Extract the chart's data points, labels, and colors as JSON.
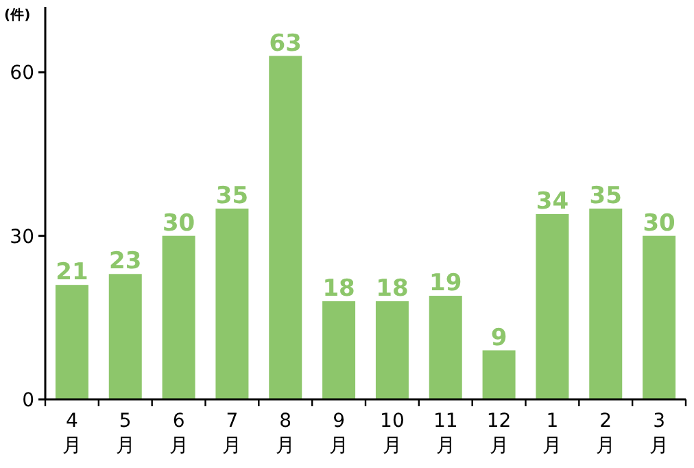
{
  "chart_data": {
    "type": "bar",
    "ylabel": "(件)",
    "categories": [
      "4月",
      "5月",
      "6月",
      "7月",
      "8月",
      "9月",
      "10月",
      "11月",
      "12月",
      "1月",
      "2月",
      "3月"
    ],
    "values": [
      21,
      23,
      30,
      35,
      63,
      18,
      18,
      19,
      9,
      34,
      35,
      30
    ],
    "color": "#8dc66b",
    "ylim": [
      0,
      72
    ],
    "yticks": [
      0,
      30,
      60
    ],
    "grid": false,
    "data_labels": true
  }
}
